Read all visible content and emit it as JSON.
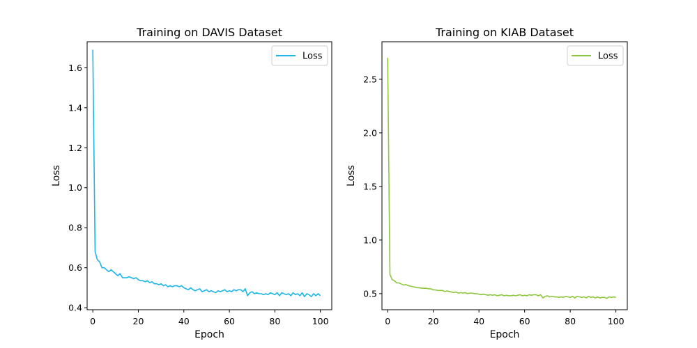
{
  "chart_data": [
    {
      "type": "line",
      "title": "Training on DAVIS Dataset",
      "xlabel": "Epoch",
      "ylabel": "Loss",
      "xlim": [
        -2.5,
        105
      ],
      "ylim": [
        0.39,
        1.73
      ],
      "xticks": [
        "0",
        "20",
        "40",
        "60",
        "80",
        "100"
      ],
      "yticks": [
        "0.4",
        "0.6",
        "0.8",
        "1.0",
        "1.2",
        "1.4",
        "1.6"
      ],
      "legend_position": "top-right",
      "grid": false,
      "series": [
        {
          "name": "Loss",
          "color": "#1bb6e6",
          "x": [
            0,
            1,
            2,
            3,
            4,
            5,
            6,
            7,
            8,
            9,
            10,
            11,
            12,
            13,
            14,
            15,
            16,
            17,
            18,
            19,
            20,
            21,
            22,
            23,
            24,
            25,
            26,
            27,
            28,
            29,
            30,
            31,
            32,
            33,
            34,
            35,
            36,
            37,
            38,
            39,
            40,
            41,
            42,
            43,
            44,
            45,
            46,
            47,
            48,
            49,
            50,
            51,
            52,
            53,
            54,
            55,
            56,
            57,
            58,
            59,
            60,
            61,
            62,
            63,
            64,
            65,
            66,
            67,
            68,
            69,
            70,
            71,
            72,
            73,
            74,
            75,
            76,
            77,
            78,
            79,
            80,
            81,
            82,
            83,
            84,
            85,
            86,
            87,
            88,
            89,
            90,
            91,
            92,
            93,
            94,
            95,
            96,
            97,
            98,
            99,
            100
          ],
          "y": [
            1.69,
            0.68,
            0.64,
            0.63,
            0.6,
            0.6,
            0.59,
            0.58,
            0.59,
            0.58,
            0.57,
            0.56,
            0.57,
            0.55,
            0.55,
            0.55,
            0.555,
            0.55,
            0.545,
            0.55,
            0.54,
            0.535,
            0.535,
            0.53,
            0.535,
            0.525,
            0.53,
            0.52,
            0.52,
            0.515,
            0.52,
            0.51,
            0.515,
            0.505,
            0.51,
            0.505,
            0.51,
            0.51,
            0.505,
            0.51,
            0.5,
            0.495,
            0.49,
            0.5,
            0.49,
            0.485,
            0.49,
            0.495,
            0.48,
            0.485,
            0.49,
            0.48,
            0.485,
            0.48,
            0.475,
            0.485,
            0.48,
            0.485,
            0.49,
            0.48,
            0.485,
            0.48,
            0.49,
            0.485,
            0.49,
            0.49,
            0.48,
            0.495,
            0.46,
            0.475,
            0.48,
            0.47,
            0.475,
            0.47,
            0.47,
            0.465,
            0.47,
            0.465,
            0.475,
            0.47,
            0.465,
            0.475,
            0.46,
            0.475,
            0.47,
            0.465,
            0.47,
            0.46,
            0.475,
            0.465,
            0.47,
            0.46,
            0.475,
            0.455,
            0.47,
            0.465,
            0.455,
            0.47,
            0.46,
            0.47,
            0.46
          ]
        }
      ]
    },
    {
      "type": "line",
      "title": "Training on KIAB Dataset",
      "xlabel": "Epoch",
      "ylabel": "Loss",
      "xlim": [
        -2.5,
        105
      ],
      "ylim": [
        0.35,
        2.85
      ],
      "xticks": [
        "0",
        "20",
        "40",
        "60",
        "80",
        "100"
      ],
      "yticks": [
        "0.5",
        "1.0",
        "1.5",
        "2.0",
        "2.5"
      ],
      "legend_position": "top-right",
      "grid": false,
      "series": [
        {
          "name": "Loss",
          "color": "#8dc63f",
          "x": [
            0,
            1,
            2,
            3,
            4,
            5,
            6,
            7,
            8,
            9,
            10,
            11,
            12,
            13,
            14,
            15,
            16,
            17,
            18,
            19,
            20,
            21,
            22,
            23,
            24,
            25,
            26,
            27,
            28,
            29,
            30,
            31,
            32,
            33,
            34,
            35,
            36,
            37,
            38,
            39,
            40,
            41,
            42,
            43,
            44,
            45,
            46,
            47,
            48,
            49,
            50,
            51,
            52,
            53,
            54,
            55,
            56,
            57,
            58,
            59,
            60,
            61,
            62,
            63,
            64,
            65,
            66,
            67,
            68,
            69,
            70,
            71,
            72,
            73,
            74,
            75,
            76,
            77,
            78,
            79,
            80,
            81,
            82,
            83,
            84,
            85,
            86,
            87,
            88,
            89,
            90,
            91,
            92,
            93,
            94,
            95,
            96,
            97,
            98,
            99,
            100
          ],
          "y": [
            2.7,
            0.68,
            0.63,
            0.62,
            0.6,
            0.6,
            0.59,
            0.58,
            0.585,
            0.575,
            0.57,
            0.565,
            0.56,
            0.555,
            0.555,
            0.55,
            0.55,
            0.55,
            0.545,
            0.545,
            0.535,
            0.535,
            0.53,
            0.53,
            0.53,
            0.52,
            0.525,
            0.52,
            0.515,
            0.51,
            0.515,
            0.505,
            0.51,
            0.505,
            0.51,
            0.5,
            0.505,
            0.505,
            0.5,
            0.5,
            0.495,
            0.49,
            0.495,
            0.49,
            0.485,
            0.49,
            0.485,
            0.49,
            0.48,
            0.485,
            0.49,
            0.48,
            0.485,
            0.48,
            0.48,
            0.485,
            0.48,
            0.485,
            0.49,
            0.48,
            0.485,
            0.48,
            0.49,
            0.485,
            0.49,
            0.49,
            0.48,
            0.49,
            0.46,
            0.475,
            0.48,
            0.47,
            0.475,
            0.47,
            0.47,
            0.465,
            0.47,
            0.465,
            0.475,
            0.47,
            0.465,
            0.475,
            0.46,
            0.475,
            0.47,
            0.465,
            0.47,
            0.46,
            0.475,
            0.465,
            0.47,
            0.46,
            0.47,
            0.46,
            0.465,
            0.465,
            0.455,
            0.47,
            0.465,
            0.47,
            0.465
          ]
        }
      ]
    }
  ]
}
